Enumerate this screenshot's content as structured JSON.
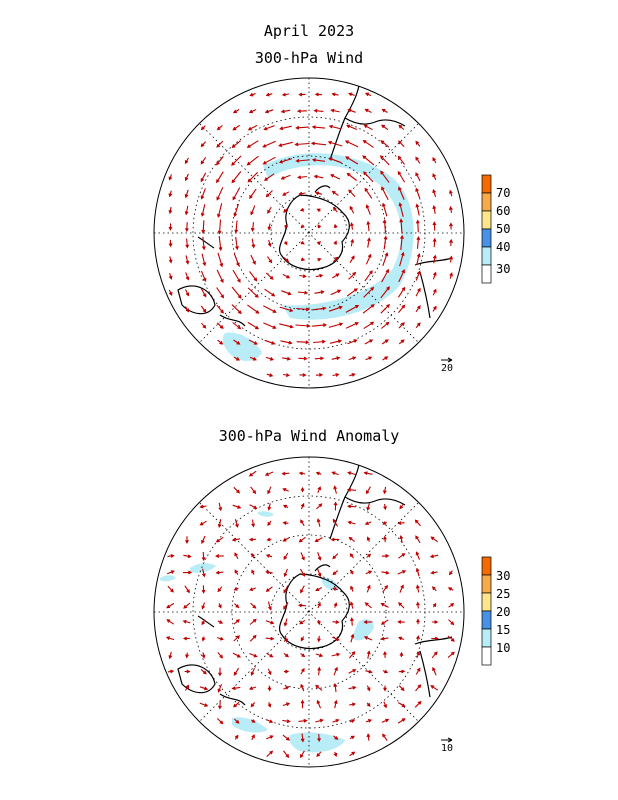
{
  "header": {
    "title": "April 2023",
    "panel_top_title": "300-hPa Wind",
    "panel_bottom_title": "300-hPa Wind Anomaly"
  },
  "panel_top": {
    "colorbar_labels": [
      "70",
      "60",
      "50",
      "40",
      "30"
    ],
    "colorbar_colors": [
      "#f56a00",
      "#f8a94a",
      "#ffe68c",
      "#4a90e6",
      "#b8ecf7",
      "#ffffff"
    ],
    "reference_vector": "20"
  },
  "panel_bottom": {
    "colorbar_labels": [
      "30",
      "25",
      "20",
      "15",
      "10"
    ],
    "colorbar_colors": [
      "#f56a00",
      "#f8a94a",
      "#ffe68c",
      "#4a90e6",
      "#b8ecf7",
      "#ffffff"
    ],
    "reference_vector": "10"
  },
  "colors": {
    "vector": "#c00000",
    "shading_light": "#b8ecf7",
    "coast": "#000000",
    "grid": "#000000"
  }
}
